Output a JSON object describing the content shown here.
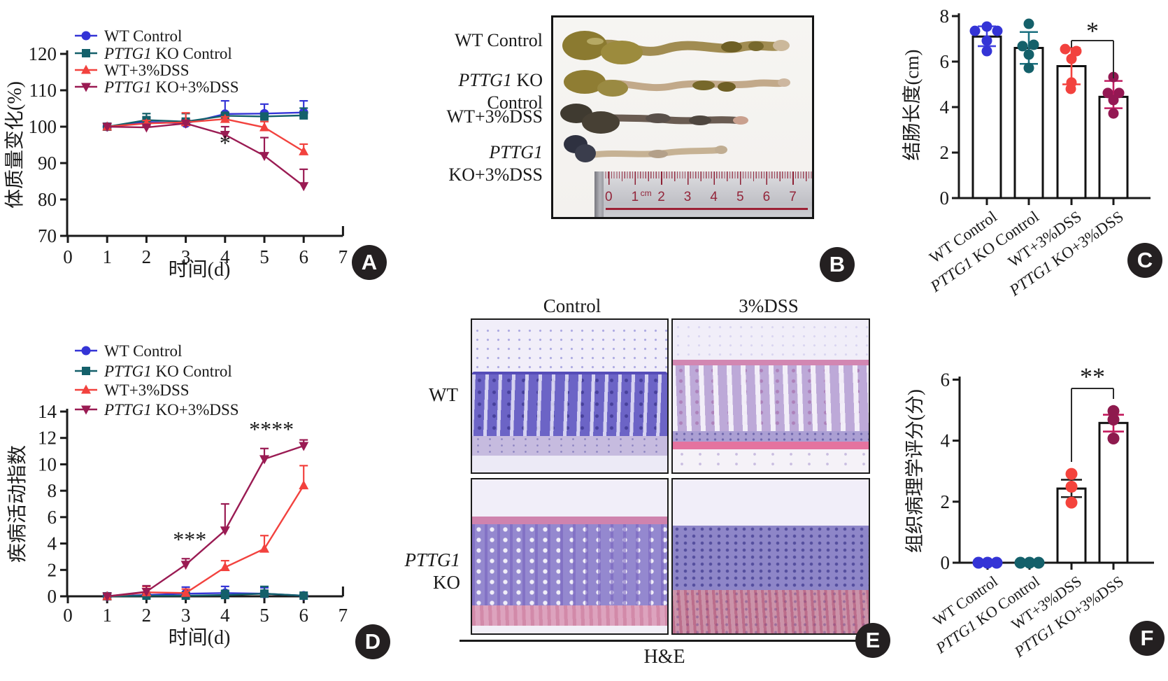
{
  "badges": [
    "A",
    "B",
    "C",
    "D",
    "E",
    "F"
  ],
  "colors": {
    "wt_control": "#3434D6",
    "ko_control": "#14606A",
    "wt_dss": "#F2423E",
    "ko_dss": "#9A1B53",
    "axis": "#1a1a1a",
    "ruler_red": "#93253a"
  },
  "panel_b": {
    "labels": [
      "WT Control",
      "PTTG1 KO Control",
      "WT+3%DSS",
      "PTTG1 KO+3%DSS"
    ],
    "ruler": {
      "numbers": [
        "0",
        "1",
        "2",
        "3",
        "4",
        "5",
        "6",
        "7"
      ],
      "unit": "cm"
    }
  },
  "panel_e": {
    "col_headers": [
      "Control",
      "3%DSS"
    ],
    "row_labels": [
      "WT",
      "PTTG1 KO"
    ],
    "stain_label": "H&E"
  },
  "chart_data": [
    {
      "id": "A",
      "type": "line",
      "ylabel": "体质量变化(%)",
      "xlabel": "时间(d)",
      "ylim": [
        70,
        120
      ],
      "yticks": [
        120,
        110,
        100,
        90,
        80,
        70
      ],
      "xlim": [
        0,
        7
      ],
      "xticks": [
        0,
        1,
        2,
        3,
        4,
        5,
        6,
        7
      ],
      "x": [
        1,
        2,
        3,
        4,
        5,
        6
      ],
      "legend_position": "top-left",
      "grid": false,
      "series": [
        {
          "name": "WT Control",
          "marker": "circle",
          "color": "#3434D6",
          "values": [
            100,
            101.3,
            100.9,
            103.5,
            103.6,
            103.9
          ],
          "err_up": [
            0,
            1.2,
            1.2,
            3.6,
            2.6,
            3.2
          ]
        },
        {
          "name": "PTTG1 KO Control",
          "marker": "square",
          "color": "#14606A",
          "values": [
            100,
            101.8,
            101.4,
            103.0,
            102.8,
            103.1
          ],
          "err_up": [
            0,
            1.8,
            2.2,
            0,
            0.8,
            2.0
          ]
        },
        {
          "name": "WT+3%DSS",
          "marker": "triangle-up",
          "color": "#F2423E",
          "values": [
            100,
            100.9,
            101.2,
            102.1,
            99.8,
            93.2
          ],
          "err_up": [
            0,
            0.8,
            2.6,
            0.6,
            1.6,
            2.0
          ]
        },
        {
          "name": "PTTG1 KO+3%DSS",
          "marker": "triangle-down",
          "color": "#9A1B53",
          "values": [
            100,
            99.8,
            100.9,
            97.8,
            92.0,
            83.7
          ],
          "err_up": [
            0,
            0.6,
            0.8,
            2.2,
            5.0,
            4.6
          ]
        }
      ],
      "annotations": [
        {
          "text": "*",
          "x": 4.0,
          "y": 93.5
        }
      ]
    },
    {
      "id": "D",
      "type": "line",
      "ylabel": "疾病活动指数",
      "xlabel": "时间(d)",
      "ylim": [
        0,
        14
      ],
      "yticks": [
        14,
        12,
        10,
        8,
        6,
        4,
        2,
        0
      ],
      "xlim": [
        0,
        7
      ],
      "xticks": [
        0,
        1,
        2,
        3,
        4,
        5,
        6,
        7
      ],
      "x": [
        1,
        2,
        3,
        4,
        5,
        6
      ],
      "legend_position": "top-left",
      "grid": false,
      "series": [
        {
          "name": "WT Control",
          "marker": "circle",
          "color": "#3434D6",
          "values": [
            0,
            0.1,
            0.2,
            0.25,
            0.2,
            0.05
          ],
          "err_up": [
            0,
            0,
            0.5,
            0.5,
            0.45,
            0
          ]
        },
        {
          "name": "PTTG1 KO Control",
          "marker": "square",
          "color": "#14606A",
          "values": [
            0,
            0.05,
            0.05,
            0.1,
            0.2,
            0.05
          ],
          "err_up": [
            0,
            0,
            0,
            0.35,
            0.55,
            0
          ]
        },
        {
          "name": "WT+3%DSS",
          "marker": "triangle-up",
          "color": "#F2423E",
          "values": [
            0,
            0.3,
            0.25,
            2.2,
            3.6,
            8.4
          ],
          "err_up": [
            0,
            0.45,
            0.3,
            0.5,
            1.0,
            1.5
          ]
        },
        {
          "name": "PTTG1 KO+3%DSS",
          "marker": "triangle-down",
          "color": "#9A1B53",
          "values": [
            0,
            0.35,
            2.4,
            5.0,
            10.4,
            11.4
          ],
          "err_up": [
            0,
            0.45,
            0.45,
            2.0,
            0.8,
            0.45
          ]
        }
      ],
      "annotations": [
        {
          "text": "***",
          "x": 3.1,
          "y": 3.75
        },
        {
          "text": "****",
          "x": 5.18,
          "y": 12.1
        }
      ]
    },
    {
      "id": "C",
      "type": "bar",
      "ylabel": "结肠长度(cm)",
      "ylim": [
        0,
        8
      ],
      "yticks": [
        8,
        6,
        4,
        2,
        0
      ],
      "categories": [
        "WT Control",
        "PTTG1 KO Control",
        "WT+3%DSS",
        "PTTG1 KO+3%DSS"
      ],
      "bars": [
        {
          "mean": 7.1,
          "err": [
            6.68,
            7.55
          ],
          "color": "#3434D6",
          "err_color": "#4444E0",
          "points": [
            {
              "dx": -17,
              "v": 7.35
            },
            {
              "dx": 0,
              "v": 7.54
            },
            {
              "dx": 15,
              "v": 7.35
            },
            {
              "dx": 0,
              "v": 6.92
            },
            {
              "dx": 0,
              "v": 6.46
            }
          ]
        },
        {
          "mean": 6.6,
          "err": [
            5.9,
            7.3
          ],
          "color": "#14606A",
          "err_color": "#1B7080",
          "points": [
            {
              "dx": 0,
              "v": 7.66
            },
            {
              "dx": -9,
              "v": 6.68
            },
            {
              "dx": 7,
              "v": 6.74
            },
            {
              "dx": 0,
              "v": 6.31
            },
            {
              "dx": 0,
              "v": 5.72
            }
          ]
        },
        {
          "mean": 5.8,
          "err": [
            5.0,
            6.6
          ],
          "color": "#F2423E",
          "err_color": "#F2423E",
          "points": [
            {
              "dx": -9,
              "v": 6.55
            },
            {
              "dx": 7,
              "v": 6.46
            },
            {
              "dx": 0,
              "v": 6.12
            },
            {
              "dx": 0,
              "v": 5.08
            },
            {
              "dx": -1,
              "v": 4.8
            }
          ]
        },
        {
          "mean": 4.45,
          "err": [
            3.95,
            5.15
          ],
          "color": "#941853",
          "err_color": "#C01E62",
          "points": [
            {
              "dx": 0,
              "v": 5.32
            },
            {
              "dx": -8,
              "v": 4.62
            },
            {
              "dx": 8,
              "v": 4.62
            },
            {
              "dx": 0,
              "v": 4.31
            },
            {
              "dx": 0,
              "v": 3.72
            }
          ]
        }
      ],
      "significance": {
        "text": "*",
        "from": 2,
        "to": 3
      }
    },
    {
      "id": "F",
      "type": "bar",
      "ylabel": "组织病理学评分(分)",
      "ylim": [
        0,
        6
      ],
      "yticks": [
        6,
        4,
        2,
        0
      ],
      "categories": [
        "WT Control",
        "PTTG1 KO Control",
        "WT+3%DSS",
        "PTTG1 KO+3%DSS"
      ],
      "bars": [
        {
          "mean": 0,
          "err": null,
          "color": "#3434D6",
          "err_color": "#3434D6",
          "points": [
            {
              "dx": -13,
              "v": 0
            },
            {
              "dx": 0,
              "v": 0
            },
            {
              "dx": 13,
              "v": 0
            }
          ]
        },
        {
          "mean": 0,
          "err": null,
          "color": "#14606A",
          "err_color": "#14606A",
          "points": [
            {
              "dx": -13,
              "v": 0
            },
            {
              "dx": 0,
              "v": 0
            },
            {
              "dx": 13,
              "v": 0
            }
          ]
        },
        {
          "mean": 2.43,
          "err": [
            2.15,
            2.72
          ],
          "color": "#F4433C",
          "err_color": "#222222",
          "points": [
            {
              "dx": 0,
              "v": 2.91
            },
            {
              "dx": 0,
              "v": 2.49
            },
            {
              "dx": 0,
              "v": 1.97
            }
          ]
        },
        {
          "mean": 4.58,
          "err": [
            4.3,
            4.85
          ],
          "color": "#8E1A4E",
          "err_color": "#C2185B",
          "points": [
            {
              "dx": 0,
              "v": 4.97
            },
            {
              "dx": 0,
              "v": 4.69
            },
            {
              "dx": 0,
              "v": 4.07
            }
          ]
        }
      ],
      "significance": {
        "text": "**",
        "from": 2,
        "to": 3
      }
    }
  ]
}
